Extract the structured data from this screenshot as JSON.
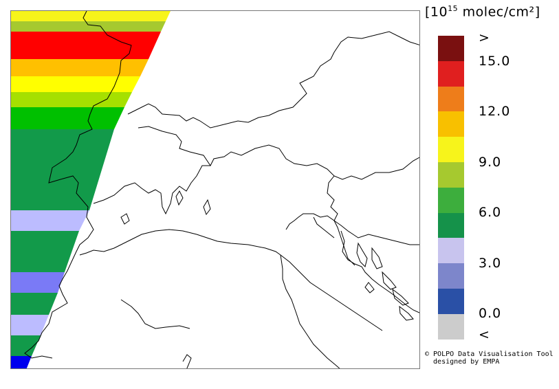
{
  "legend": {
    "unit_base": "10",
    "unit_exp": "15",
    "unit_text": "molec/cm²",
    "above_label": ">",
    "below_label": "<",
    "tick_labels": [
      "15.0",
      "12.0",
      "9.0",
      "6.0",
      "3.0",
      "0.0"
    ],
    "colors": [
      "#7a1010",
      "#e01f1f",
      "#ee7d1a",
      "#f8c000",
      "#f7f41b",
      "#a6c92f",
      "#3dae3d",
      "#15924a",
      "#c8c4ee",
      "#7d86cb",
      "#2a50a6",
      "#cccccc"
    ]
  },
  "credit": {
    "line1": "© POLPO Data Visualisation Tool",
    "line2": "  designed by EMPA"
  },
  "map": {
    "stripes": [
      {
        "value": 9.5,
        "color": "#f7f41b"
      },
      {
        "value": 7.5,
        "color": "#a6c92f"
      },
      {
        "value": 15.5,
        "color": "#ff0000"
      },
      {
        "value": 13.0,
        "color": "#ffc000"
      },
      {
        "value": 10.5,
        "color": "#ffff00"
      },
      {
        "value": 8.0,
        "color": "#a6e000"
      },
      {
        "value": 6.5,
        "color": "#00c000"
      },
      {
        "value": 5.0,
        "color": "#129a4a"
      },
      {
        "value": 3.5,
        "color": "#bcbcff"
      },
      {
        "value": 5.0,
        "color": "#129a4a"
      },
      {
        "value": 2.0,
        "color": "#7a7af6"
      },
      {
        "value": 5.0,
        "color": "#129a4a"
      },
      {
        "value": 3.5,
        "color": "#bcbcff"
      },
      {
        "value": 5.0,
        "color": "#129a4a"
      },
      {
        "value": 0.5,
        "color": "#0000ee"
      }
    ]
  }
}
